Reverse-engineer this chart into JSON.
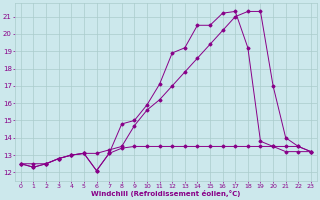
{
  "bg_color": "#cce8ec",
  "line_color": "#880088",
  "grid_color": "#aacccc",
  "xlabel": "Windchill (Refroidissement éolien,°C)",
  "xlim": [
    -0.5,
    23.5
  ],
  "ylim": [
    11.5,
    21.8
  ],
  "yticks": [
    12,
    13,
    14,
    15,
    16,
    17,
    18,
    19,
    20,
    21
  ],
  "xticks": [
    0,
    1,
    2,
    3,
    4,
    5,
    6,
    7,
    8,
    9,
    10,
    11,
    12,
    13,
    14,
    15,
    16,
    17,
    18,
    19,
    20,
    21,
    22,
    23
  ],
  "line1_x": [
    0,
    1,
    2,
    3,
    4,
    5,
    6,
    7,
    8,
    9,
    10,
    11,
    12,
    13,
    14,
    15,
    16,
    17,
    18,
    19,
    20,
    21,
    22,
    23
  ],
  "line1_y": [
    12.5,
    12.3,
    12.5,
    12.8,
    13.0,
    13.1,
    12.1,
    13.1,
    13.4,
    13.5,
    13.5,
    13.5,
    13.5,
    13.5,
    13.5,
    13.5,
    13.5,
    13.5,
    13.5,
    13.5,
    13.5,
    13.5,
    13.5,
    13.2
  ],
  "line2_x": [
    0,
    1,
    2,
    3,
    4,
    5,
    6,
    7,
    8,
    9,
    10,
    11,
    12,
    13,
    14,
    15,
    16,
    17,
    18,
    19,
    20,
    21,
    22,
    23
  ],
  "line2_y": [
    12.5,
    12.3,
    12.5,
    12.8,
    13.0,
    13.1,
    12.1,
    13.1,
    14.8,
    15.0,
    15.9,
    17.1,
    18.9,
    19.2,
    20.5,
    20.5,
    21.2,
    21.3,
    19.2,
    13.8,
    13.5,
    13.2,
    13.2,
    13.2
  ],
  "line3_x": [
    0,
    1,
    2,
    3,
    4,
    5,
    6,
    7,
    8,
    9,
    10,
    11,
    12,
    13,
    14,
    15,
    16,
    17,
    18,
    19,
    20,
    21,
    22,
    23
  ],
  "line3_y": [
    12.5,
    12.5,
    12.5,
    12.8,
    13.0,
    13.1,
    13.1,
    13.3,
    13.5,
    14.7,
    15.6,
    16.2,
    17.0,
    17.8,
    18.6,
    19.4,
    20.2,
    21.0,
    21.3,
    21.3,
    17.0,
    14.0,
    13.5,
    13.2
  ]
}
